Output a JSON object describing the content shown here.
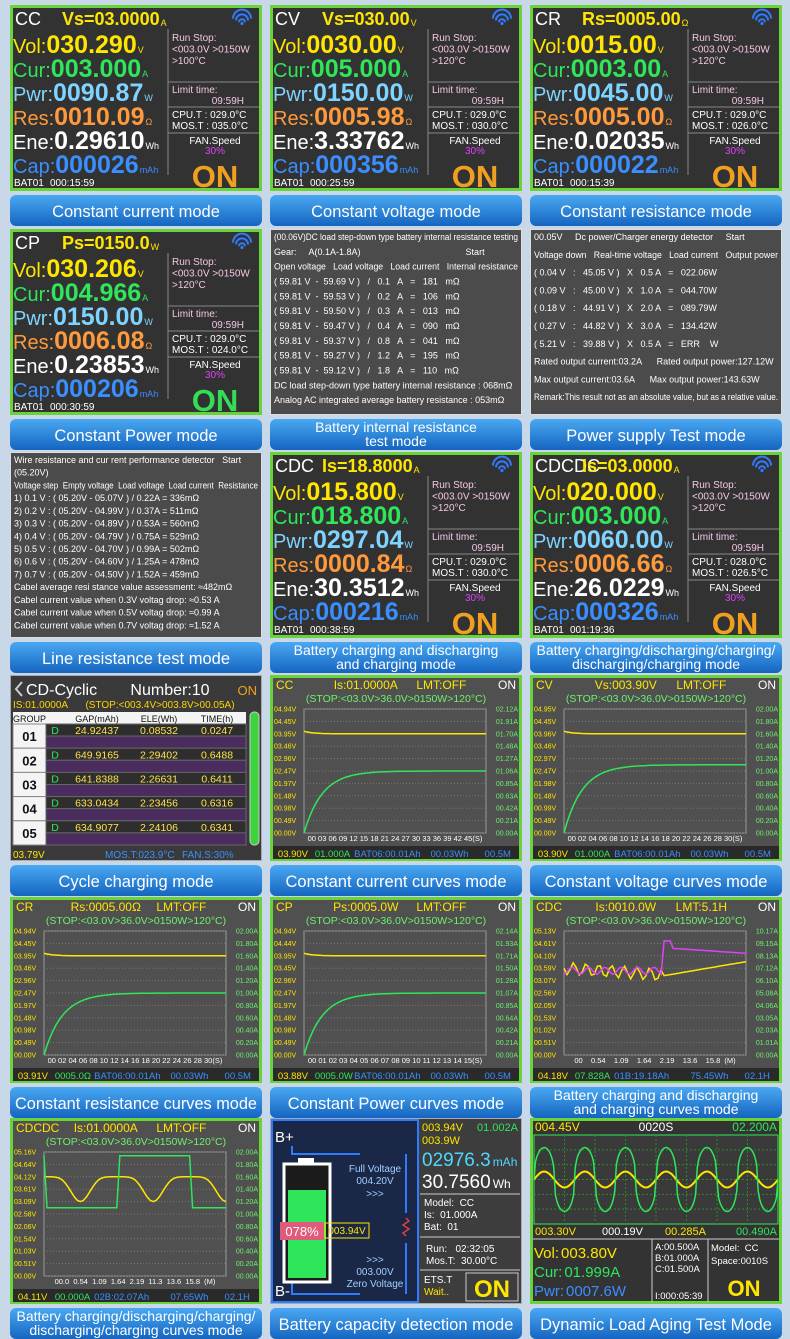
{
  "panels": [
    {
      "kind": "readout",
      "caption": [
        "Constant current mode"
      ],
      "mode": "CC",
      "setting": "Vs=03.0000",
      "setting_unit": "A",
      "rows": [
        {
          "label": "Vol:",
          "value": "030.290",
          "unit": "V"
        },
        {
          "label": "Cur:",
          "value": "003.000",
          "unit": "A"
        },
        {
          "label": "Pwr:",
          "value": "0090.87",
          "unit": "W"
        },
        {
          "label": "Res:",
          "value": "0010.09",
          "unit": "Ω"
        },
        {
          "label": "Ene:",
          "value": "0.29610",
          "unit": "Wh"
        },
        {
          "label": "Cap:",
          "value": "000026",
          "unit": "mAh"
        }
      ],
      "run_stop": [
        "Run Stop:",
        "<003.0V >0150W",
        ">100°C"
      ],
      "limit": [
        "Limit time:",
        "09:59H"
      ],
      "temps": [
        "CPU.T : 029.0°C",
        "MOS.T : 035.0°C"
      ],
      "fan": [
        "FAN.Speed",
        "30%"
      ],
      "state": "ON",
      "state_color": "#f0a020",
      "bat": "BAT01",
      "time": "000:15:59"
    },
    {
      "kind": "readout",
      "caption": [
        "Constant voltage mode"
      ],
      "mode": "CV",
      "setting": "Vs=030.00",
      "setting_unit": "V",
      "rows": [
        {
          "label": "Vol:",
          "value": "0030.00",
          "unit": "V"
        },
        {
          "label": "Cur:",
          "value": "005.000",
          "unit": "A"
        },
        {
          "label": "Pwr:",
          "value": "0150.00",
          "unit": "W"
        },
        {
          "label": "Res:",
          "value": "0005.98",
          "unit": "Ω"
        },
        {
          "label": "Ene:",
          "value": "3.33762",
          "unit": "Wh"
        },
        {
          "label": "Cap:",
          "value": "000356",
          "unit": "mAh"
        }
      ],
      "run_stop": [
        "Run Stop:",
        "<003.0V >0150W",
        ">120°C"
      ],
      "limit": [
        "Limit time:",
        "09:59H"
      ],
      "temps": [
        "CPU.T : 029.0°C",
        "MOS.T : 030.0°C"
      ],
      "fan": [
        "FAN.Speed",
        "30%"
      ],
      "state": "ON",
      "state_color": "#f0a020",
      "bat": "BAT01",
      "time": "000:25:59"
    },
    {
      "kind": "readout",
      "caption": [
        "Constant resistance mode"
      ],
      "mode": "CR",
      "setting": "Rs=0005.00",
      "setting_unit": "Ω",
      "rows": [
        {
          "label": "Vol:",
          "value": "0015.00",
          "unit": "V"
        },
        {
          "label": "Cur:",
          "value": "0003.00",
          "unit": "A"
        },
        {
          "label": "Pwr:",
          "value": "0045.00",
          "unit": "W"
        },
        {
          "label": "Res:",
          "value": "0005.00",
          "unit": "Ω"
        },
        {
          "label": "Ene:",
          "value": "0.02035",
          "unit": "Wh"
        },
        {
          "label": "Cap:",
          "value": "000022",
          "unit": "mAh"
        }
      ],
      "run_stop": [
        "Run Stop:",
        "<003.0V >0150W",
        ">120°C"
      ],
      "limit": [
        "Limit time:",
        "09:59H"
      ],
      "temps": [
        "CPU.T : 029.0°C",
        "MOS.T : 026.0°C"
      ],
      "fan": [
        "FAN.Speed",
        "30%"
      ],
      "state": "ON",
      "state_color": "#f0a020",
      "bat": "BAT01",
      "time": "000:15:39"
    },
    {
      "kind": "readout",
      "caption": [
        "Constant Power mode"
      ],
      "mode": "CP",
      "setting": "Ps=0150.0",
      "setting_unit": "W",
      "rows": [
        {
          "label": "Vol:",
          "value": "030.206",
          "unit": "V"
        },
        {
          "label": "Cur:",
          "value": "004.966",
          "unit": "A"
        },
        {
          "label": "Pwr:",
          "value": "0150.00",
          "unit": "W"
        },
        {
          "label": "Res:",
          "value": "0006.08",
          "unit": "Ω"
        },
        {
          "label": "Ene:",
          "value": "0.23853",
          "unit": "Wh"
        },
        {
          "label": "Cap:",
          "value": "000206",
          "unit": "mAh"
        }
      ],
      "run_stop": [
        "Run Stop:",
        "<003.0V >0150W",
        ">120°C"
      ],
      "limit": [
        "Limit time:",
        "09:59H"
      ],
      "temps": [
        "CPU.T : 029.0°C",
        "MOS.T : 024.0°C"
      ],
      "fan": [
        "FAN.Speed",
        "30%"
      ],
      "state": "ON",
      "state_color": "#33dd55",
      "bat": "BAT01",
      "time": "000:30:59"
    },
    {
      "kind": "text",
      "caption": [
        "Battery internal resistance",
        "test mode"
      ],
      "lines": [
        "(00.06V)DC load step-down type battery internal resistance testing",
        "Gear:     A(0.1A-1.8A)                                          Start",
        "Open voltage   Load voltage   Load current   Internal resistance",
        "( 59.81 V  -  59.69 V )   /   0.1   A   =   181   mΩ",
        "( 59.81 V  -  59.53 V )   /   0.2   A   =   106   mΩ",
        "( 59.81 V  -  59.50 V )   /   0.3   A   =   013   mΩ",
        "( 59.81 V  -  59.47 V )   /   0.4   A   =   090   mΩ",
        "( 59.81 V  -  59.37 V )   /   0.8   A   =   041   mΩ",
        "( 59.81 V  -  59.27 V )   /   1.2   A   =   195   mΩ",
        "( 59.81 V  -  59.12 V )   /   1.8   A   =   110   mΩ",
        "DC load step-down type battery internal resistance : 068mΩ",
        "Analog AC integrated average battery resistance : 053mΩ"
      ]
    },
    {
      "kind": "text",
      "caption": [
        "Power supply Test mode"
      ],
      "lines": [
        "00.05V     Dc power/Charger energy detector     Start",
        "Voltage down   Real-time voltage   Load current   Output power",
        "( 0.04 V   :   45.05 V )   X   0.5 A   =   022.06W",
        "( 0.09 V   :   45.00 V )   X   1.0 A   =   044.70W",
        "( 0.18 V   :   44.91 V )   X   2.0 A   =   089.79W",
        "( 0.27 V   :   44.82 V )   X   3.0 A   =   134.42W",
        "( 5.21 V   :   39.88 V )   X   0.5 A   =   ERR    W",
        "Rated output current:03.2A      Rated output power:127.12W",
        "Max output current:03.6A      Max output power:143.63W",
        "Remark:This result not as an absolute value, but as a relative value."
      ]
    },
    {
      "kind": "text",
      "caption": [
        "Line resistance test mode"
      ],
      "lines": [
        "Wire resistance and cur rent performance detector   Start",
        "(05.20V)",
        "Voltage step  Empty voltage  Load voltage  Load current  Resistance",
        "1) 0.1 V : ( 05.20V - 05.07V ) / 0.22A = 336mΩ",
        "2) 0.2 V : ( 05.20V - 04.99V ) / 0.37A = 511mΩ",
        "3) 0.3 V : ( 05.20V - 04.89V ) / 0.53A = 560mΩ",
        "4) 0.4 V : ( 05.20V - 04.79V ) / 0.75A = 529mΩ",
        "5) 0.5 V : ( 05.20V - 04.70V ) / 0.99A = 502mΩ",
        "6) 0.6 V : ( 05.20V - 04.60V ) / 1.25A = 478mΩ",
        "7) 0.7 V : ( 05.20V - 04.50V ) / 1.52A = 459mΩ",
        "Cabel average resi stance value assessment: ≈482mΩ",
        "Cabel current value when 0.3V voltag drop: ≈0.53 A",
        "Cabel current value when 0.5V voltag drop: ≈0.99 A",
        "Cabel current value when 0.7V voltag drop: ≈1.52 A"
      ]
    },
    {
      "kind": "readout",
      "caption": [
        "Battery charging and discharging",
        "and charging mode"
      ],
      "mode": "CDC",
      "setting": "Is=18.8000",
      "setting_unit": "A",
      "rows": [
        {
          "label": "Vol:",
          "value": "015.800",
          "unit": "V"
        },
        {
          "label": "Cur:",
          "value": "018.800",
          "unit": "A"
        },
        {
          "label": "Pwr:",
          "value": "0297.04",
          "unit": "W"
        },
        {
          "label": "Res:",
          "value": "0000.84",
          "unit": "Ω"
        },
        {
          "label": "Ene:",
          "value": "30.3512",
          "unit": "Wh"
        },
        {
          "label": "Cap:",
          "value": "000216",
          "unit": "mAh"
        }
      ],
      "run_stop": [
        "Run Stop:",
        "<003.0V >0150W",
        ">120°C"
      ],
      "limit": [
        "Limit time:",
        "09:59H"
      ],
      "temps": [
        "CPU.T : 029.0°C",
        "MOS.T : 030.0°C"
      ],
      "fan": [
        "FAN.Speed",
        "30%"
      ],
      "state": "ON",
      "state_color": "#f0a020",
      "bat": "BAT01",
      "time": "000:38:59"
    },
    {
      "kind": "readout",
      "caption": [
        "Battery charging/discharging/charging/",
        "discharging/charging mode"
      ],
      "mode": "CDCDC",
      "setting": "Is=03.0000",
      "setting_unit": "A",
      "rows": [
        {
          "label": "Vol:",
          "value": "020.000",
          "unit": "V"
        },
        {
          "label": "Cur:",
          "value": "003.000",
          "unit": "A"
        },
        {
          "label": "Pwr:",
          "value": "0060.00",
          "unit": "W"
        },
        {
          "label": "Res:",
          "value": "0006.66",
          "unit": "Ω"
        },
        {
          "label": "Ene:",
          "value": "26.0229",
          "unit": "Wh"
        },
        {
          "label": "Cap:",
          "value": "000326",
          "unit": "mAh"
        }
      ],
      "run_stop": [
        "Run Stop:",
        "<003.0V >0150W",
        ">120°C"
      ],
      "limit": [
        "Limit time:",
        "09:59H"
      ],
      "temps": [
        "CPU.T : 028.0°C",
        "MOS.T : 026.5°C"
      ],
      "fan": [
        "FAN.Speed",
        "30%"
      ],
      "state": "ON",
      "state_color": "#f0a020",
      "bat": "BAT01",
      "time": "001:19:36"
    },
    {
      "kind": "cycle",
      "caption": [
        "Cycle charging mode"
      ],
      "title": "CD-Cyclic",
      "number": "Number:10",
      "state": "ON",
      "current": "IS:01.0000A",
      "stop": "(STOP:<003.4V>003.8V>00.05A)",
      "columns": [
        "GROUP",
        "GAP(mAh)",
        "ELE(Wh)",
        "TIME(h)"
      ],
      "groups": [
        {
          "group": "01",
          "cells": [
            "D",
            "24.92437",
            "0.08532",
            "0.0247"
          ]
        },
        {
          "group": "02",
          "cells": [
            "D",
            "649.9165",
            "2.29402",
            "0.6488"
          ]
        },
        {
          "group": "03",
          "cells": [
            "D",
            "641.8388",
            "2.26631",
            "0.6411"
          ]
        },
        {
          "group": "04",
          "cells": [
            "D",
            "633.0434",
            "2.23456",
            "0.6316"
          ]
        },
        {
          "group": "05",
          "cells": [
            "D",
            "634.9077",
            "2.24106",
            "0.6341"
          ]
        }
      ],
      "status": [
        "03.79V",
        "MOS.T:023.9°C",
        "FAN.S:30%"
      ]
    },
    {
      "kind": "curves",
      "caption": [
        "Constant current curves mode"
      ],
      "mode": "CC",
      "setting": "Is:01.0000A",
      "limit": "LMT:OFF",
      "state": "ON",
      "stop": "(STOP:<03.0V>36.0V>0150W>120°C)",
      "left": [
        "04.94V",
        "04.45V",
        "03.95V",
        "03.46V",
        "02.96V",
        "02.47V",
        "01.97V",
        "01.48V",
        "00.98V",
        "00.49V",
        "00.00V"
      ],
      "right": [
        "02.12A",
        "01.91A",
        "01.70A",
        "01.48A",
        "01.27A",
        "01.06A",
        "00.85A",
        "00.63A",
        "00.42A",
        "00.21A",
        "00.00A"
      ],
      "x_labels": "00 03 06 09 12 15 18 21 24 27 30 33 36 39 42 45(S)",
      "status": [
        "03.90V",
        "01.000A",
        "BAT06:00.01Ah",
        "00.03Wh",
        "00.5M"
      ]
    },
    {
      "kind": "curves",
      "caption": [
        "Constant voltage curves mode"
      ],
      "mode": "CV",
      "setting": "Vs:003.90V",
      "limit": "LMT:OFF",
      "state": "ON",
      "stop": "(STOP:<03.0V>36.0V>0150W>120°C)",
      "left": [
        "04.95V",
        "04.45V",
        "03.96V",
        "03.46V",
        "02.97V",
        "02.47V",
        "01.98V",
        "01.48V",
        "00.99V",
        "00.49V",
        "00.00V"
      ],
      "right": [
        "02.00A",
        "01.80A",
        "01.60A",
        "01.40A",
        "01.20A",
        "01.00A",
        "00.80A",
        "00.60A",
        "00.40A",
        "00.20A",
        "00.00A"
      ],
      "x_labels": "00 02 04 06 08 10 12 14 16 18 20 22 24 26 28 30(S)",
      "status": [
        "03.90V",
        "01.000A",
        "BAT06:00.01Ah",
        "00.03Wh",
        "00.5M"
      ]
    },
    {
      "kind": "curves",
      "caption": [
        "Constant resistance curves mode"
      ],
      "mode": "CR",
      "setting": "Rs:0005.00Ω",
      "limit": "LMT:OFF",
      "state": "ON",
      "stop": "(STOP:<03.0V>36.0V>0150W>120°C)",
      "left": [
        "04.94V",
        "04.45V",
        "03.95V",
        "03.46V",
        "02.96V",
        "02.47V",
        "01.97V",
        "01.48V",
        "00.98V",
        "00.49V",
        "00.00V"
      ],
      "right": [
        "02.00A",
        "01.80A",
        "01.60A",
        "01.40A",
        "01.20A",
        "01.00A",
        "00.80A",
        "00.60A",
        "00.40A",
        "00.20A",
        "00.00A"
      ],
      "x_labels": "00 02 04 06 08 10 12 14 16 18 20 22 24 26 28 30(S)",
      "status": [
        "03.91V",
        "0005.0Ω",
        "BAT06:00.01Ah",
        "00.03Wh",
        "00.5M"
      ]
    },
    {
      "kind": "curves",
      "caption": [
        "Constant Power curves mode"
      ],
      "mode": "CP",
      "setting": "Ps:0005.0W",
      "limit": "LMT:OFF",
      "state": "ON",
      "stop": "(STOP:<03.0V>36.0V>0150W>120°C)",
      "left": [
        "04.94V",
        "04.44V",
        "03.95V",
        "03.45V",
        "02.96V",
        "02.47V",
        "01.97V",
        "01.48V",
        "00.98V",
        "00.49V",
        "00.00V"
      ],
      "right": [
        "02.14A",
        "01.93A",
        "01.71A",
        "01.50A",
        "01.28A",
        "01.07A",
        "00.85A",
        "00.64A",
        "00.42A",
        "00.21A",
        "00.00A"
      ],
      "x_labels": "00 01 02 03 04 05 06 07 08 09 10 11 12 13 14 15(S)",
      "status": [
        "03.88V",
        "0005.0W",
        "BAT06:00.01Ah",
        "00.03Wh",
        "00.5M"
      ]
    },
    {
      "kind": "curves",
      "caption": [
        "Battery charging and discharging",
        "and charging curves mode"
      ],
      "mode": "CDC",
      "setting": "Is:0010.0W",
      "limit": "LMT:5.1H",
      "state": "ON",
      "stop": "(STOP:<03.0V>36.0V>0150W>120°C)",
      "left": [
        "05.13V",
        "04.61V",
        "04.10V",
        "03.59V",
        "03.07V",
        "02.56V",
        "02.05V",
        "01.53V",
        "01.02V",
        "00.51V",
        "00.00V"
      ],
      "right": [
        "10.17A",
        "09.15A",
        "08.13A",
        "07.12A",
        "06.10A",
        "05.08A",
        "04.06A",
        "03.05A",
        "02.03A",
        "01.01A",
        "00.00A"
      ],
      "x_labels": "00    0.54    1.09    1.64    2.19    13.6    15.8  (M)",
      "status": [
        "04.18V",
        "07.828A",
        "01B:19.18Ah",
        "75.45Wh",
        "02.1H"
      ]
    },
    {
      "kind": "curves",
      "caption": [
        "Battery charging/discharging/charging/",
        "discharging/charging curves mode"
      ],
      "mode": "CDCDC",
      "setting": "Is:01.0000A",
      "limit": "LMT:OFF",
      "state": "ON",
      "stop": "(STOP:<03.0V>36.0V>0150W>120°C)",
      "left": [
        "05.16V",
        "04.64V",
        "04.12V",
        "03.61V",
        "03.09V",
        "02.58V",
        "02.06V",
        "01.54V",
        "01.03V",
        "00.51V",
        "00.00V"
      ],
      "right": [
        "02.00A",
        "01.80A",
        "01.60A",
        "01.40A",
        "01.20A",
        "01.00A",
        "00.80A",
        "00.60A",
        "00.40A",
        "00.20A",
        "00.00A"
      ],
      "x_labels": "00.0  0.54  1.09  1.64  2.19  11.3  13.6  15.8  (M)",
      "status": [
        "04.11V",
        "00.000A",
        "02B:02.07Ah",
        "07.65Wh",
        "02.1H"
      ]
    },
    {
      "kind": "capacity",
      "caption": [
        "Battery capacity detection mode"
      ],
      "terminal_pos": "B+",
      "terminal_neg": "B-",
      "full_label": "Full Voltage",
      "full_voltage": "004.20V",
      "arrows_up": ">>>",
      "percent": "078%",
      "battery_voltage": "003.94V",
      "arrows_down": ">>>",
      "zero_voltage": "003.00V",
      "zero_label": "Zero Voltage",
      "voltage": "003.94V",
      "current": "01.002A",
      "power": "003.9W",
      "capacity": "02976.3",
      "capacity_unit": "mAh",
      "energy": "30.7560",
      "energy_unit": "Wh",
      "info": [
        "Model:  CC",
        "Is:  01.000A",
        "Bat:  01"
      ],
      "run": [
        "Run:   02:32:05",
        "Mos.T:  30.00°C"
      ],
      "ets": [
        "ETS.T",
        "Wait.."
      ],
      "state": "ON"
    },
    {
      "kind": "aging",
      "caption": [
        "Dynamic Load Aging Test Mode"
      ],
      "top": [
        "004.45V",
        "0020S",
        "02.200A"
      ],
      "bottom": [
        "003.30V",
        "000.19V",
        "00.285A",
        "00.490A"
      ],
      "readings": [
        {
          "label": "Vol:",
          "value": "003.80V"
        },
        {
          "label": "Cur:",
          "value": "01.999A"
        },
        {
          "label": "Pwr:",
          "value": "0007.6W"
        }
      ],
      "steps": [
        "A:00.500A",
        "B:01.000A",
        "C:01.500A",
        "I:000:05:39"
      ],
      "mode": [
        "Model:  CC",
        "Space:0010S"
      ],
      "state": "ON"
    }
  ]
}
